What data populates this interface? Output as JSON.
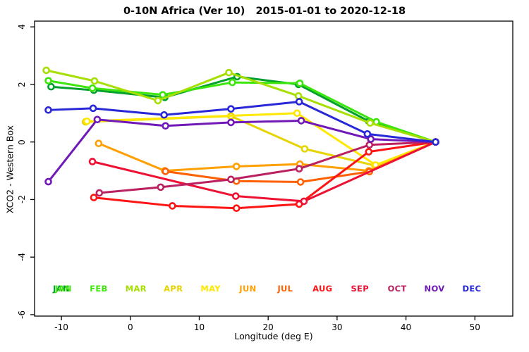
{
  "chart_data": {
    "type": "line",
    "title": "0-10N Africa (Ver 10)   2015-01-01 to 2020-12-18",
    "xlabel": "Longitude (deg E)",
    "ylabel": "XCO2 - Western Box",
    "xlim": [
      -13.9,
      55.5
    ],
    "ylim": [
      -6.05,
      4.2
    ],
    "xticks": [
      -10,
      0,
      10,
      20,
      30,
      40,
      50
    ],
    "yticks": [
      4,
      2,
      0,
      -2,
      -4,
      -6
    ],
    "grid": false,
    "legend_position": "inside-bottom",
    "marker": "open-circle-white-fill",
    "series": [
      {
        "name": "JAN",
        "color": "#00A02C",
        "legend_overlay_color": "#44E80A",
        "x": [
          -11.5,
          -5.3,
          5.0,
          15.5,
          24.4,
          34.6,
          44.3
        ],
        "y": [
          1.92,
          1.8,
          1.55,
          2.27,
          2.0,
          0.72,
          0.0
        ]
      },
      {
        "name": "FEB",
        "color": "#3CE60A",
        "x": [
          -11.9,
          -5.5,
          4.7,
          14.8,
          24.6,
          35.7,
          44.3
        ],
        "y": [
          2.13,
          1.87,
          1.64,
          2.07,
          2.04,
          0.7,
          0.0
        ]
      },
      {
        "name": "MAR",
        "color": "#A6DF00",
        "x": [
          -12.2,
          -5.2,
          4.0,
          14.3,
          24.4,
          34.8,
          44.3
        ],
        "y": [
          2.49,
          2.12,
          1.44,
          2.41,
          1.6,
          0.66,
          0.0
        ]
      },
      {
        "name": "APR",
        "color": "#E6D400",
        "x": [
          -6.5,
          14.6,
          25.3,
          35.5,
          44.3
        ],
        "y": [
          0.7,
          0.9,
          -0.24,
          -0.82,
          0.0
        ]
      },
      {
        "name": "MAY",
        "color": "#FFE800",
        "x": [
          -6.3,
          24.2,
          35.6,
          44.3
        ],
        "y": [
          0.72,
          1.0,
          -0.8,
          0.0
        ]
      },
      {
        "name": "JUN",
        "color": "#FFA000",
        "x": [
          -4.6,
          5.0,
          15.4,
          24.6,
          34.6,
          44.3
        ],
        "y": [
          -0.05,
          -1.0,
          -0.85,
          -0.77,
          -1.0,
          0.0
        ]
      },
      {
        "name": "JUL",
        "color": "#FF6000",
        "x": [
          5.1,
          15.4,
          24.7,
          34.7,
          44.3
        ],
        "y": [
          -1.02,
          -1.36,
          -1.39,
          -1.03,
          0.0
        ]
      },
      {
        "name": "AUG",
        "color": "#FF1414",
        "x": [
          -5.3,
          6.1,
          15.4,
          24.5,
          34.6,
          44.3
        ],
        "y": [
          -1.93,
          -2.22,
          -2.3,
          -2.16,
          -0.34,
          0.0
        ]
      },
      {
        "name": "SEP",
        "color": "#EE1133",
        "x": [
          -5.5,
          15.3,
          25.2,
          44.3
        ],
        "y": [
          -0.68,
          -1.88,
          -2.06,
          0.0
        ]
      },
      {
        "name": "OCT",
        "color": "#BB2060",
        "x": [
          -4.5,
          4.4,
          14.6,
          24.5,
          34.7,
          44.3
        ],
        "y": [
          -1.77,
          -1.57,
          -1.3,
          -0.93,
          -0.1,
          0.0
        ]
      },
      {
        "name": "NOV",
        "color": "#7018B8",
        "x": [
          -11.9,
          -4.8,
          5.1,
          14.6,
          24.8,
          34.9,
          44.3
        ],
        "y": [
          -1.38,
          0.78,
          0.56,
          0.68,
          0.74,
          0.1,
          0.0
        ]
      },
      {
        "name": "DEC",
        "color": "#2828D8",
        "x": [
          -11.9,
          -5.4,
          4.9,
          14.6,
          24.5,
          34.4,
          44.3
        ],
        "y": [
          1.11,
          1.17,
          0.94,
          1.15,
          1.4,
          0.28,
          0.0
        ]
      }
    ]
  }
}
